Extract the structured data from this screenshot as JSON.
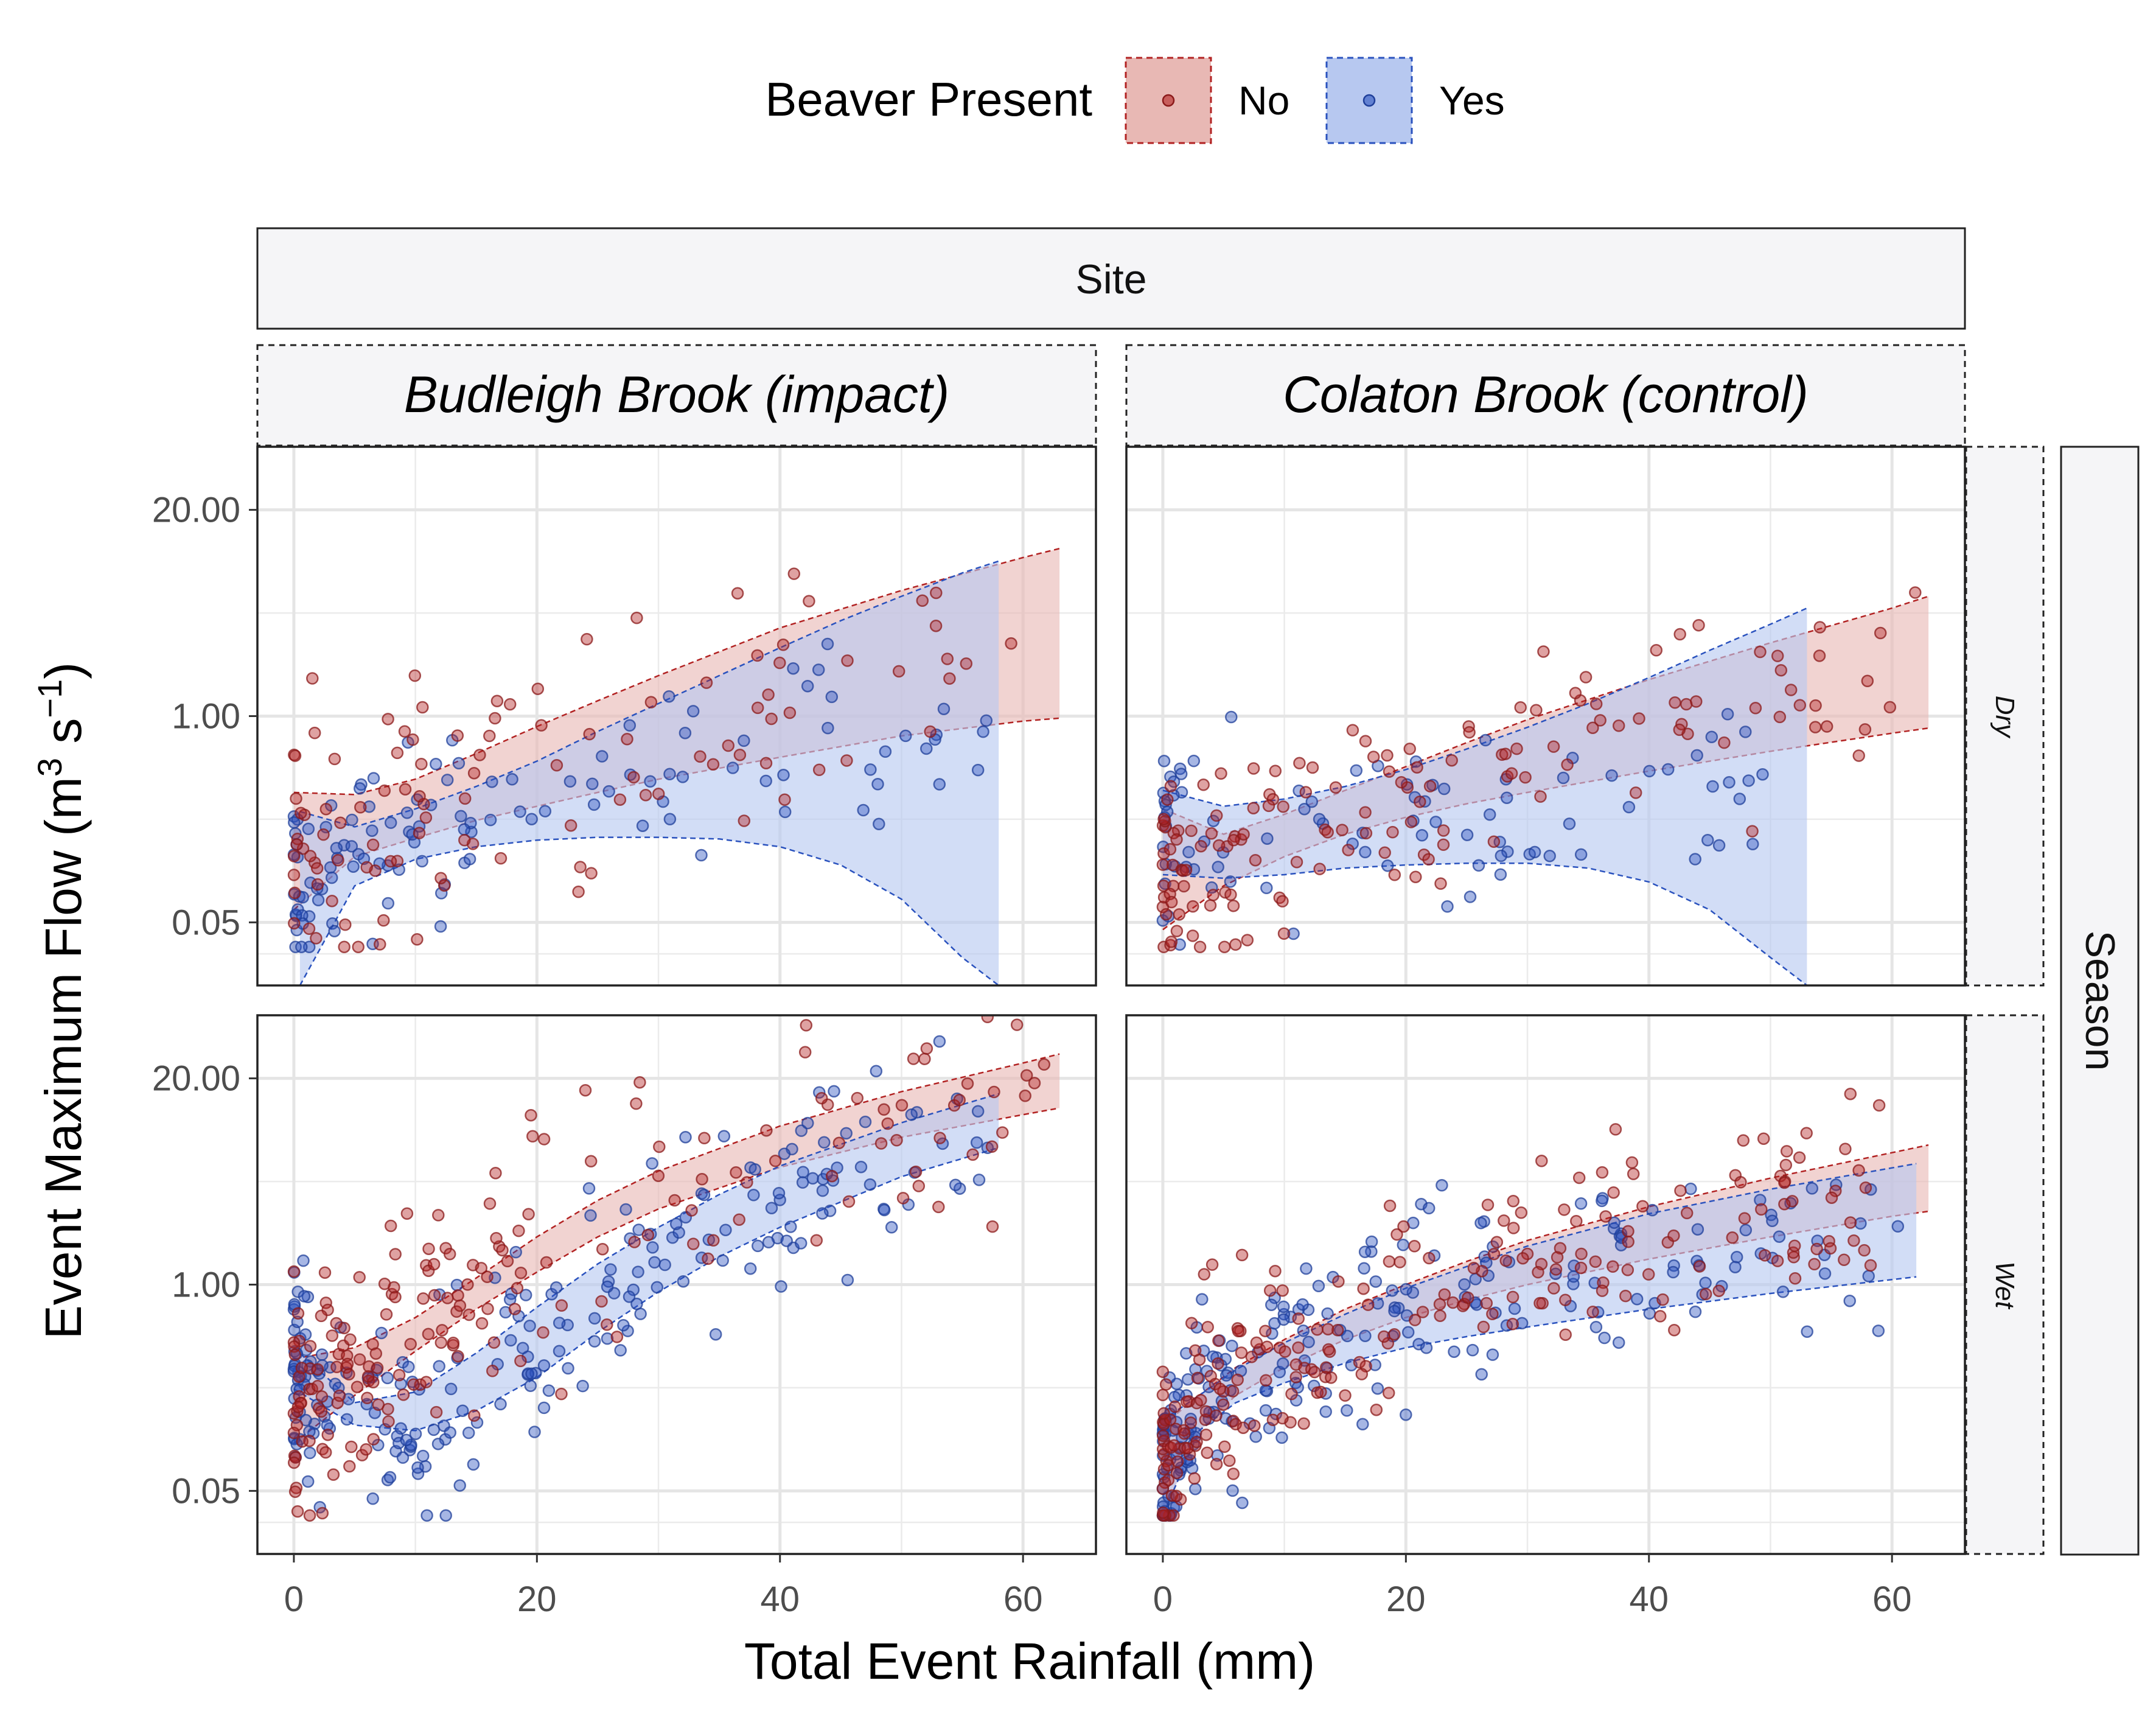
{
  "legend": {
    "title": "Beaver Present",
    "items": [
      {
        "label": "No",
        "color": "#B22222",
        "fill": "#E8B8B4"
      },
      {
        "label": "Yes",
        "color": "#2A52BE",
        "fill": "#B7C8F0"
      }
    ]
  },
  "strips": {
    "top": "Site",
    "right": "Season",
    "columns": [
      "Budleigh Brook (impact)",
      "Colaton Brook (control)"
    ],
    "rows": [
      "Dry",
      "Wet"
    ]
  },
  "axes": {
    "xlabel": "Total Event Rainfall   (mm)",
    "ylabel_main": "Event Maximum Flow   (m",
    "ylabel_exp1": "3",
    "ylabel_mid": " s",
    "ylabel_exp2": "−1",
    "ylabel_end": ")"
  },
  "chart_data": {
    "type": "scatter",
    "facets": "2x2 grid: columns = Site, rows = Season",
    "x_ticks": [
      0,
      20,
      40,
      60
    ],
    "y_tick_labels": [
      "0.05",
      "1.00",
      "20.00"
    ],
    "y_ticks": [
      0.05,
      1.0,
      20.0
    ],
    "y_scale": "log",
    "xlim": [
      -3,
      66
    ],
    "ylim": [
      0.02,
      50
    ],
    "panels": [
      {
        "site": "Budleigh Brook (impact)",
        "season": "Dry",
        "ribbons": {
          "No": {
            "x": [
              0,
              5,
              10,
              15,
              20,
              25,
              30,
              40,
              50,
              60,
              63
            ],
            "lo": [
              0.06,
              0.13,
              0.17,
              0.22,
              0.27,
              0.33,
              0.4,
              0.55,
              0.75,
              0.93,
              0.97
            ],
            "hi": [
              0.33,
              0.32,
              0.4,
              0.58,
              0.86,
              1.25,
              1.8,
              3.6,
              6.2,
              10.0,
              11.4
            ]
          },
          "Yes": {
            "x": [
              0.5,
              5,
              10,
              15,
              20,
              25,
              30,
              35,
              40,
              45,
              50,
              55,
              58
            ],
            "lo": [
              0.02,
              0.085,
              0.125,
              0.15,
              0.165,
              0.172,
              0.172,
              0.168,
              0.15,
              0.115,
              0.07,
              0.03,
              0.02
            ],
            "hi": [
              0.25,
              0.2,
              0.26,
              0.36,
              0.52,
              0.8,
              1.2,
              1.8,
              2.7,
              4.0,
              5.7,
              8.0,
              9.5
            ]
          }
        }
      },
      {
        "site": "Colaton Brook (control)",
        "season": "Dry",
        "ribbons": {
          "No": {
            "x": [
              0,
              5,
              10,
              15,
              20,
              25,
              30,
              40,
              50,
              60,
              63
            ],
            "lo": [
              0.045,
              0.085,
              0.13,
              0.18,
              0.23,
              0.28,
              0.33,
              0.45,
              0.6,
              0.78,
              0.84
            ],
            "hi": [
              0.26,
              0.18,
              0.24,
              0.34,
              0.48,
              0.68,
              0.95,
              1.7,
              2.9,
              4.8,
              5.7
            ]
          },
          "Yes": {
            "x": [
              0,
              5,
              10,
              15,
              20,
              25,
              30,
              35,
              40,
              45,
              50,
              53
            ],
            "lo": [
              0.1,
              0.095,
              0.1,
              0.11,
              0.115,
              0.118,
              0.118,
              0.11,
              0.09,
              0.06,
              0.03,
              0.02
            ],
            "hi": [
              0.34,
              0.27,
              0.3,
              0.36,
              0.46,
              0.62,
              0.85,
              1.2,
              1.75,
              2.6,
              3.8,
              4.8
            ]
          }
        }
      },
      {
        "site": "Budleigh Brook (impact)",
        "season": "Wet",
        "ribbons": {
          "No": {
            "x": [
              0,
              5,
              10,
              15,
              20,
              25,
              30,
              40,
              50,
              60,
              63
            ],
            "lo": [
              0.1,
              0.2,
              0.38,
              0.7,
              1.2,
              2.0,
              3.0,
              5.5,
              8.5,
              11.8,
              13.0
            ],
            "hi": [
              0.34,
              0.4,
              0.62,
              1.1,
              2.0,
              3.4,
              5.2,
              10.0,
              16.5,
              25.0,
              28.5
            ]
          },
          "Yes": {
            "x": [
              0,
              5,
              10,
              15,
              20,
              25,
              30,
              35,
              40,
              50,
              58
            ],
            "lo": [
              0.22,
              0.13,
              0.12,
              0.16,
              0.26,
              0.5,
              0.9,
              1.5,
              2.3,
              4.8,
              7.3
            ],
            "hi": [
              0.4,
              0.18,
              0.21,
              0.37,
              0.72,
              1.35,
              2.3,
              3.7,
              5.6,
              10.5,
              16.0
            ]
          }
        }
      },
      {
        "site": "Colaton Brook (control)",
        "season": "Wet",
        "ribbons": {
          "No": {
            "x": [
              0,
              3,
              6,
              10,
              15,
              20,
              25,
              30,
              40,
              50,
              60,
              63
            ],
            "lo": [
              0.035,
              0.12,
              0.2,
              0.3,
              0.45,
              0.62,
              0.8,
              1.0,
              1.45,
              2.0,
              2.7,
              2.9
            ],
            "hi": [
              0.13,
              0.2,
              0.3,
              0.45,
              0.7,
              1.0,
              1.4,
              1.9,
              3.1,
              4.7,
              6.8,
              7.6
            ]
          },
          "Yes": {
            "x": [
              0,
              3,
              6,
              10,
              15,
              20,
              25,
              30,
              40,
              50,
              62
            ],
            "lo": [
              0.035,
              0.12,
              0.18,
              0.24,
              0.32,
              0.4,
              0.47,
              0.54,
              0.7,
              0.88,
              1.12
            ],
            "hi": [
              0.14,
              0.2,
              0.29,
              0.43,
              0.65,
              0.95,
              1.3,
              1.75,
              2.8,
              4.0,
              5.8
            ]
          }
        }
      }
    ]
  }
}
